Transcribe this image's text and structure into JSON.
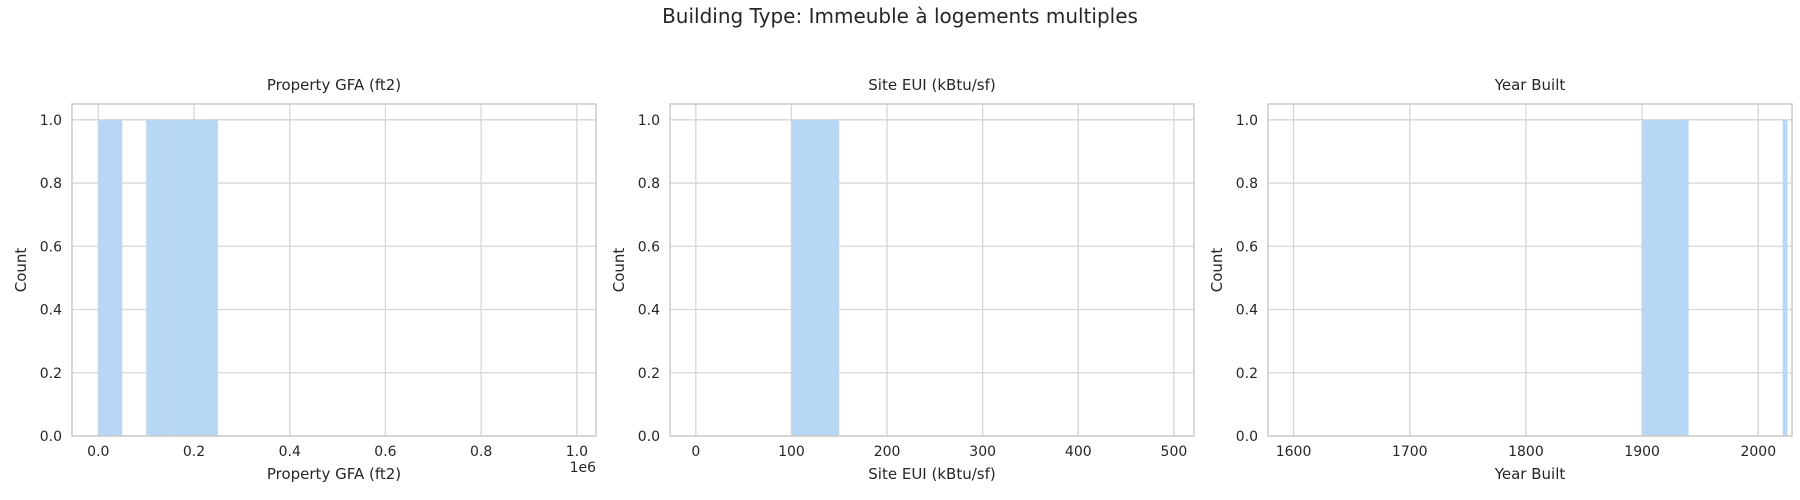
{
  "figure": {
    "suptitle": "Building Type: Immeuble à logements multiples"
  },
  "style": {
    "bar_color": "#b8d7f4",
    "grid_color": "#d6d6d6",
    "spine_color": "#cccccc",
    "text_color": "#262626"
  },
  "chart_data": [
    {
      "type": "bar",
      "title": "Property GFA (ft2)",
      "xlabel": "Property GFA (ft2)",
      "ylabel": "Count",
      "offset_label": "1e6",
      "xlim": [
        -55000,
        1040000
      ],
      "ylim": [
        0,
        1.05
      ],
      "xticks": [
        {
          "value": 0,
          "label": "0.0"
        },
        {
          "value": 200000,
          "label": "0.2"
        },
        {
          "value": 400000,
          "label": "0.4"
        },
        {
          "value": 600000,
          "label": "0.6"
        },
        {
          "value": 800000,
          "label": "0.8"
        },
        {
          "value": 1000000,
          "label": "1.0"
        }
      ],
      "yticks": [
        {
          "value": 0,
          "label": "0.0"
        },
        {
          "value": 0.2,
          "label": "0.2"
        },
        {
          "value": 0.4,
          "label": "0.4"
        },
        {
          "value": 0.6,
          "label": "0.6"
        },
        {
          "value": 0.8,
          "label": "0.8"
        },
        {
          "value": 1.0,
          "label": "1.0"
        }
      ],
      "bins": [
        {
          "start": 0,
          "end": 50000,
          "count": 1
        },
        {
          "start": 100000,
          "end": 150000,
          "count": 1
        },
        {
          "start": 150000,
          "end": 200000,
          "count": 1
        },
        {
          "start": 200000,
          "end": 250000,
          "count": 1
        }
      ]
    },
    {
      "type": "bar",
      "title": "Site EUI (kBtu/sf)",
      "xlabel": "Site EUI (kBtu/sf)",
      "ylabel": "Count",
      "xlim": [
        -27,
        521
      ],
      "ylim": [
        0,
        1.05
      ],
      "xticks": [
        {
          "value": 0,
          "label": "0"
        },
        {
          "value": 100,
          "label": "100"
        },
        {
          "value": 200,
          "label": "200"
        },
        {
          "value": 300,
          "label": "300"
        },
        {
          "value": 400,
          "label": "400"
        },
        {
          "value": 500,
          "label": "500"
        }
      ],
      "yticks": [
        {
          "value": 0,
          "label": "0.0"
        },
        {
          "value": 0.2,
          "label": "0.2"
        },
        {
          "value": 0.4,
          "label": "0.4"
        },
        {
          "value": 0.6,
          "label": "0.6"
        },
        {
          "value": 0.8,
          "label": "0.8"
        },
        {
          "value": 1.0,
          "label": "1.0"
        }
      ],
      "bins": [
        {
          "start": 100,
          "end": 150,
          "count": 1
        }
      ]
    },
    {
      "type": "bar",
      "title": "Year Built",
      "xlabel": "Year Built",
      "ylabel": "Count",
      "xlim": [
        1578,
        2029
      ],
      "ylim": [
        0,
        1.05
      ],
      "xticks": [
        {
          "value": 1600,
          "label": "1600"
        },
        {
          "value": 1700,
          "label": "1700"
        },
        {
          "value": 1800,
          "label": "1800"
        },
        {
          "value": 1900,
          "label": "1900"
        },
        {
          "value": 2000,
          "label": "2000"
        }
      ],
      "yticks": [
        {
          "value": 0,
          "label": "0.0"
        },
        {
          "value": 0.2,
          "label": "0.2"
        },
        {
          "value": 0.4,
          "label": "0.4"
        },
        {
          "value": 0.6,
          "label": "0.6"
        },
        {
          "value": 0.8,
          "label": "0.8"
        },
        {
          "value": 1.0,
          "label": "1.0"
        }
      ],
      "bins": [
        {
          "start": 1900,
          "end": 1940,
          "count": 1
        },
        {
          "start": 2021,
          "end": 2025,
          "count": 1
        }
      ]
    }
  ]
}
